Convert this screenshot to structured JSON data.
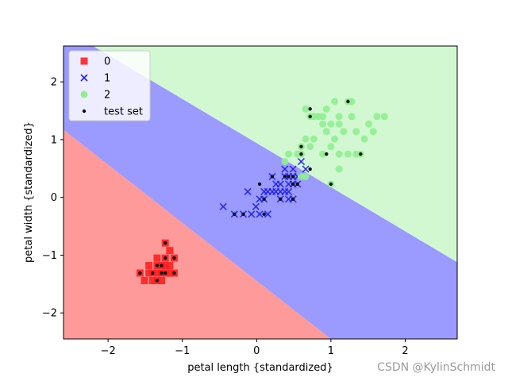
{
  "watermark": "CSDN @KylinSchmidt",
  "chart_data": {
    "type": "scatter",
    "xlabel": "petal length {standardized}",
    "ylabel": "petal width {standardized}",
    "xlim": [
      -2.6,
      2.7
    ],
    "ylim": [
      -2.45,
      2.62
    ],
    "xticks": [
      -2,
      -1,
      0,
      1,
      2
    ],
    "yticks": [
      -2,
      -1,
      0,
      1,
      2
    ],
    "grid": false,
    "legend_position": "top-left",
    "decision_regions": [
      {
        "class": "0",
        "color": "#ff9a9a",
        "rule": "below line through (-2.6, 1.17) and (1.0, -2.45)"
      },
      {
        "class": "1",
        "color": "#9a9aff",
        "rule": "between the two boundaries"
      },
      {
        "class": "2",
        "color": "#d2f8d2",
        "rule": "above line through (-2.2, 2.62) and (2.7, -1.12)"
      }
    ],
    "series": [
      {
        "name": "0",
        "marker": "square",
        "color": "#ff2020",
        "points": [
          [
            -1.57,
            -1.31
          ],
          [
            -1.51,
            -1.44
          ],
          [
            -1.45,
            -1.31
          ],
          [
            -1.4,
            -1.31
          ],
          [
            -1.34,
            -1.44
          ],
          [
            -1.34,
            -1.31
          ],
          [
            -1.34,
            -1.18
          ],
          [
            -1.34,
            -1.05
          ],
          [
            -1.28,
            -1.31
          ],
          [
            -1.28,
            -1.18
          ],
          [
            -1.28,
            -1.44
          ],
          [
            -1.23,
            -0.79
          ],
          [
            -1.23,
            -1.05
          ],
          [
            -1.23,
            -1.31
          ],
          [
            -1.17,
            -0.92
          ],
          [
            -1.17,
            -1.18
          ],
          [
            -1.17,
            -1.31
          ],
          [
            -1.11,
            -1.05
          ],
          [
            -1.11,
            -1.31
          ],
          [
            -1.45,
            -1.18
          ],
          [
            -1.23,
            -1.18
          ],
          [
            -1.4,
            -1.44
          ]
        ]
      },
      {
        "name": "1",
        "marker": "x",
        "color": "#2020ee",
        "points": [
          [
            -0.45,
            -0.16
          ],
          [
            -0.3,
            -0.29
          ],
          [
            -0.18,
            -0.29
          ],
          [
            -0.12,
            0.1
          ],
          [
            -0.07,
            -0.29
          ],
          [
            -0.01,
            -0.16
          ],
          [
            0.04,
            -0.03
          ],
          [
            0.04,
            -0.29
          ],
          [
            0.1,
            0.1
          ],
          [
            0.15,
            -0.29
          ],
          [
            0.15,
            0.1
          ],
          [
            0.21,
            0.1
          ],
          [
            0.21,
            0.36
          ],
          [
            0.26,
            0.1
          ],
          [
            0.32,
            0.23
          ],
          [
            0.32,
            0.1
          ],
          [
            0.32,
            -0.03
          ],
          [
            0.38,
            0.49
          ],
          [
            0.38,
            0.36
          ],
          [
            0.38,
            0.1
          ],
          [
            0.43,
            0.23
          ],
          [
            0.43,
            0.36
          ],
          [
            0.43,
            0.1
          ],
          [
            0.49,
            0.49
          ],
          [
            0.49,
            0.36
          ],
          [
            0.49,
            0.23
          ],
          [
            0.49,
            -0.03
          ],
          [
            0.55,
            0.36
          ],
          [
            0.55,
            0.23
          ],
          [
            0.6,
            0.62
          ],
          [
            0.66,
            0.49
          ],
          [
            0.1,
            -0.03
          ],
          [
            0.26,
            0.23
          ],
          [
            0.43,
            -0.03
          ]
        ]
      },
      {
        "name": "2",
        "marker": "circle",
        "color": "#90ee90",
        "points": [
          [
            0.38,
            0.62
          ],
          [
            0.43,
            0.75
          ],
          [
            0.55,
            0.75
          ],
          [
            0.6,
            0.36
          ],
          [
            0.6,
            0.75
          ],
          [
            0.6,
            0.88
          ],
          [
            0.66,
            0.36
          ],
          [
            0.66,
            1.01
          ],
          [
            0.66,
            1.53
          ],
          [
            0.72,
            0.88
          ],
          [
            0.72,
            1.4
          ],
          [
            0.77,
            1.01
          ],
          [
            0.77,
            1.4
          ],
          [
            0.83,
            1.4
          ],
          [
            0.89,
            0.75
          ],
          [
            0.89,
            1.27
          ],
          [
            0.89,
            1.4
          ],
          [
            0.94,
            1.14
          ],
          [
            0.94,
            1.53
          ],
          [
            1.0,
            0.88
          ],
          [
            1.0,
            1.27
          ],
          [
            1.05,
            1.01
          ],
          [
            1.05,
            1.66
          ],
          [
            1.11,
            0.49
          ],
          [
            1.11,
            0.75
          ],
          [
            1.11,
            1.27
          ],
          [
            1.11,
            1.4
          ],
          [
            1.17,
            1.14
          ],
          [
            1.23,
            0.75
          ],
          [
            1.23,
            1.66
          ],
          [
            1.28,
            1.4
          ],
          [
            1.28,
            1.66
          ],
          [
            1.34,
            0.75
          ],
          [
            1.34,
            1.14
          ],
          [
            1.4,
            0.75
          ],
          [
            1.45,
            1.01
          ],
          [
            1.51,
            1.27
          ],
          [
            1.57,
            1.14
          ],
          [
            1.62,
            1.4
          ],
          [
            1.72,
            1.4
          ],
          [
            1.0,
            0.23
          ]
        ]
      },
      {
        "name": "test set",
        "marker": "dot",
        "color": "#111111",
        "points": [
          [
            -1.57,
            -1.31
          ],
          [
            -1.4,
            -1.31
          ],
          [
            -1.34,
            -1.44
          ],
          [
            -1.28,
            -1.31
          ],
          [
            -1.23,
            -0.79
          ],
          [
            -1.23,
            -1.05
          ],
          [
            -1.23,
            -1.31
          ],
          [
            -1.11,
            -1.05
          ],
          [
            -1.11,
            -1.31
          ],
          [
            -1.34,
            -1.18
          ],
          [
            -1.28,
            -1.18
          ],
          [
            -0.3,
            -0.29
          ],
          [
            -0.18,
            -0.29
          ],
          [
            0.04,
            0.23
          ],
          [
            0.1,
            -0.03
          ],
          [
            0.1,
            -0.29
          ],
          [
            0.21,
            0.36
          ],
          [
            0.32,
            -0.03
          ],
          [
            0.38,
            0.36
          ],
          [
            0.43,
            0.36
          ],
          [
            0.49,
            0.36
          ],
          [
            0.49,
            0.23
          ],
          [
            0.49,
            -0.03
          ],
          [
            0.55,
            0.23
          ],
          [
            0.72,
            0.49
          ],
          [
            0.49,
            0.23
          ],
          [
            0.6,
            0.75
          ],
          [
            0.6,
            0.88
          ],
          [
            0.72,
            1.53
          ],
          [
            0.72,
            1.4
          ],
          [
            0.94,
            0.75
          ],
          [
            1.0,
            0.23
          ],
          [
            1.23,
            1.66
          ],
          [
            1.4,
            0.75
          ]
        ]
      }
    ]
  }
}
